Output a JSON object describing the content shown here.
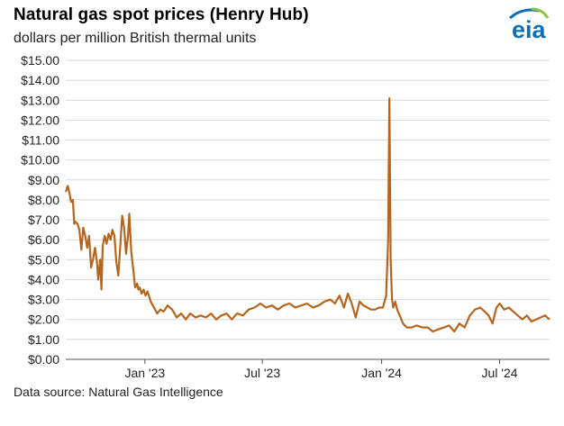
{
  "header": {
    "title": "Natural gas spot prices (Henry Hub)",
    "subtitle": "dollars per million British thermal units",
    "logo_text": "eia"
  },
  "footer": {
    "source": "Data source: Natural Gas Intelligence"
  },
  "colors": {
    "line": "#b5651d",
    "grid": "#d9d9d9",
    "logo_blue": "#0d6fb8",
    "logo_green": "#8cc63f"
  },
  "chart_data": {
    "type": "line",
    "title": "Natural gas spot prices (Henry Hub)",
    "ylabel": "dollars per million British thermal units",
    "xlabel": "",
    "ylim": [
      0,
      15
    ],
    "xlim": [
      "2022-09-01",
      "2024-09-16"
    ],
    "y_ticks": [
      "$0.00",
      "$1.00",
      "$2.00",
      "$3.00",
      "$4.00",
      "$5.00",
      "$6.00",
      "$7.00",
      "$8.00",
      "$9.00",
      "$10.00",
      "$11.00",
      "$12.00",
      "$13.00",
      "$14.00",
      "$15.00"
    ],
    "x_ticks": [
      {
        "label": "Jan '23",
        "date": "2023-01-01"
      },
      {
        "label": "Jul '23",
        "date": "2023-07-01"
      },
      {
        "label": "Jan '24",
        "date": "2024-01-01"
      },
      {
        "label": "Jul '24",
        "date": "2024-07-01"
      }
    ],
    "grid": "horizontal",
    "series": [
      {
        "x": [
          "2022-09-01",
          "2022-09-04",
          "2022-09-07",
          "2022-09-09",
          "2022-09-12",
          "2022-09-14",
          "2022-09-16",
          "2022-09-19",
          "2022-09-22",
          "2022-09-25",
          "2022-09-28",
          "2022-10-01",
          "2022-10-04",
          "2022-10-07",
          "2022-10-10",
          "2022-10-13",
          "2022-10-16",
          "2022-10-19",
          "2022-10-21",
          "2022-10-24",
          "2022-10-26",
          "2022-10-28",
          "2022-10-31",
          "2022-11-03",
          "2022-11-06",
          "2022-11-09",
          "2022-11-12",
          "2022-11-15",
          "2022-11-18",
          "2022-11-21",
          "2022-11-24",
          "2022-11-27",
          "2022-11-30",
          "2022-12-03",
          "2022-12-06",
          "2022-12-08",
          "2022-12-11",
          "2022-12-14",
          "2022-12-17",
          "2022-12-20",
          "2022-12-22",
          "2022-12-24",
          "2022-12-27",
          "2022-12-30",
          "2023-01-02",
          "2023-01-05",
          "2023-01-10",
          "2023-01-15",
          "2023-01-20",
          "2023-01-25",
          "2023-01-30",
          "2023-02-05",
          "2023-02-12",
          "2023-02-19",
          "2023-02-26",
          "2023-03-05",
          "2023-03-12",
          "2023-03-20",
          "2023-03-28",
          "2023-04-05",
          "2023-04-13",
          "2023-04-21",
          "2023-04-29",
          "2023-05-07",
          "2023-05-15",
          "2023-05-23",
          "2023-06-01",
          "2023-06-10",
          "2023-06-19",
          "2023-06-28",
          "2023-07-07",
          "2023-07-16",
          "2023-07-25",
          "2023-08-03",
          "2023-08-12",
          "2023-08-21",
          "2023-08-30",
          "2023-09-08",
          "2023-09-17",
          "2023-09-26",
          "2023-10-05",
          "2023-10-14",
          "2023-10-21",
          "2023-10-28",
          "2023-11-04",
          "2023-11-10",
          "2023-11-16",
          "2023-11-22",
          "2023-11-28",
          "2023-12-04",
          "2023-12-10",
          "2023-12-16",
          "2023-12-22",
          "2023-12-28",
          "2024-01-03",
          "2024-01-08",
          "2024-01-11",
          "2024-01-13",
          "2024-01-15",
          "2024-01-17",
          "2024-01-19",
          "2024-01-22",
          "2024-01-25",
          "2024-01-29",
          "2024-02-03",
          "2024-02-09",
          "2024-02-16",
          "2024-02-24",
          "2024-03-04",
          "2024-03-12",
          "2024-03-20",
          "2024-03-28",
          "2024-04-06",
          "2024-04-14",
          "2024-04-22",
          "2024-04-30",
          "2024-05-08",
          "2024-05-16",
          "2024-05-24",
          "2024-06-01",
          "2024-06-08",
          "2024-06-14",
          "2024-06-20",
          "2024-06-26",
          "2024-07-01",
          "2024-07-08",
          "2024-07-15",
          "2024-07-22",
          "2024-07-29",
          "2024-08-05",
          "2024-08-12",
          "2024-08-19",
          "2024-08-26",
          "2024-09-02",
          "2024-09-09",
          "2024-09-16"
        ],
        "values": [
          8.4,
          8.7,
          8.3,
          7.9,
          8.0,
          6.8,
          6.9,
          6.8,
          6.5,
          5.5,
          6.6,
          6.2,
          5.6,
          6.2,
          4.6,
          5.0,
          5.6,
          4.9,
          4.0,
          5.0,
          3.5,
          5.7,
          6.2,
          5.8,
          6.3,
          6.0,
          6.5,
          6.2,
          4.9,
          4.2,
          5.7,
          7.2,
          6.6,
          5.3,
          6.2,
          7.3,
          5.4,
          4.5,
          3.6,
          3.8,
          3.5,
          3.6,
          3.3,
          3.5,
          3.2,
          3.4,
          2.9,
          2.6,
          2.3,
          2.5,
          2.4,
          2.7,
          2.5,
          2.1,
          2.3,
          2.0,
          2.3,
          2.1,
          2.2,
          2.1,
          2.3,
          2.0,
          2.2,
          2.3,
          2.0,
          2.3,
          2.2,
          2.5,
          2.6,
          2.8,
          2.6,
          2.7,
          2.5,
          2.7,
          2.8,
          2.6,
          2.7,
          2.8,
          2.6,
          2.7,
          2.9,
          3.0,
          2.8,
          3.2,
          2.6,
          3.3,
          2.8,
          2.1,
          2.9,
          2.7,
          2.6,
          2.5,
          2.5,
          2.6,
          2.6,
          3.2,
          6.0,
          13.1,
          5.0,
          3.0,
          2.6,
          2.9,
          2.5,
          2.2,
          1.8,
          1.6,
          1.6,
          1.7,
          1.6,
          1.6,
          1.4,
          1.5,
          1.6,
          1.7,
          1.4,
          1.8,
          1.6,
          2.2,
          2.5,
          2.6,
          2.4,
          2.2,
          1.8,
          2.6,
          2.8,
          2.5,
          2.6,
          2.4,
          2.2,
          2.0,
          2.2,
          1.9,
          2.0,
          2.1,
          2.2,
          2.0
        ]
      }
    ]
  }
}
